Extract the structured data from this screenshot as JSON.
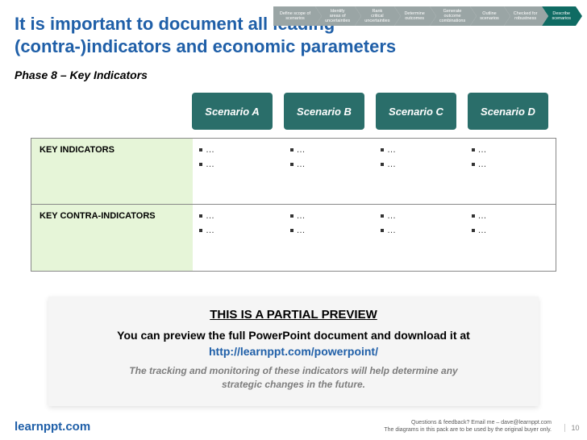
{
  "breadcrumb": {
    "steps": [
      {
        "label": "Define scope of\nscenarios",
        "active": false
      },
      {
        "label": "Identify\nareas of\nuncertainties",
        "active": false
      },
      {
        "label": "Rank\ncritical\nuncertainties",
        "active": false
      },
      {
        "label": "Determine\noutcomes",
        "active": false
      },
      {
        "label": "Generate\noutcome\ncombinations",
        "active": false
      },
      {
        "label": "Outline\nscenarios",
        "active": false
      },
      {
        "label": "Checked for\nrobustness",
        "active": false
      },
      {
        "label": "Describe\nscenarios",
        "active": true
      }
    ],
    "inactive_color": "#9aa5a5",
    "active_color": "#0f6b63"
  },
  "title": "It is important to document all leading (contra-)indicators and economic parameters",
  "title_color": "#1f5fa8",
  "subtitle": "Phase 8 – Key Indicators",
  "scenarios": {
    "labels": [
      "Scenario A",
      "Scenario B",
      "Scenario C",
      "Scenario D"
    ],
    "box_color": "#2a6e6a",
    "text_color": "#ffffff"
  },
  "table": {
    "label_bg": "#e6f5d8",
    "border_color": "#888888",
    "rows": [
      {
        "label": "KEY INDICATORS",
        "cells": [
          [
            "…",
            "…"
          ],
          [
            "…",
            "…"
          ],
          [
            "…",
            "…"
          ],
          [
            "…",
            "…"
          ]
        ]
      },
      {
        "label": "KEY CONTRA-INDICATORS",
        "cells": [
          [
            "…",
            "…"
          ],
          [
            "…",
            "…"
          ],
          [
            "…",
            "…"
          ],
          [
            "…",
            "…"
          ]
        ]
      }
    ]
  },
  "preview": {
    "heading": "THIS IS A PARTIAL PREVIEW",
    "line1": "You can preview the full PowerPoint document and download it at ",
    "link_text": "http://learnppt.com/powerpoint/",
    "tracking1": "The tracking and monitoring of these indicators will help determine any",
    "tracking2": "strategic changes in the future.",
    "bg_color": "#f5f5f5"
  },
  "footer": {
    "brand": "learnppt.com",
    "brand_color": "#1f5fa8",
    "line1": "Questions & feedback?  Email me – dave@learnppt.com",
    "line2": "The diagrams in this pack are to be used by the original buyer only.",
    "page_number": "10"
  }
}
